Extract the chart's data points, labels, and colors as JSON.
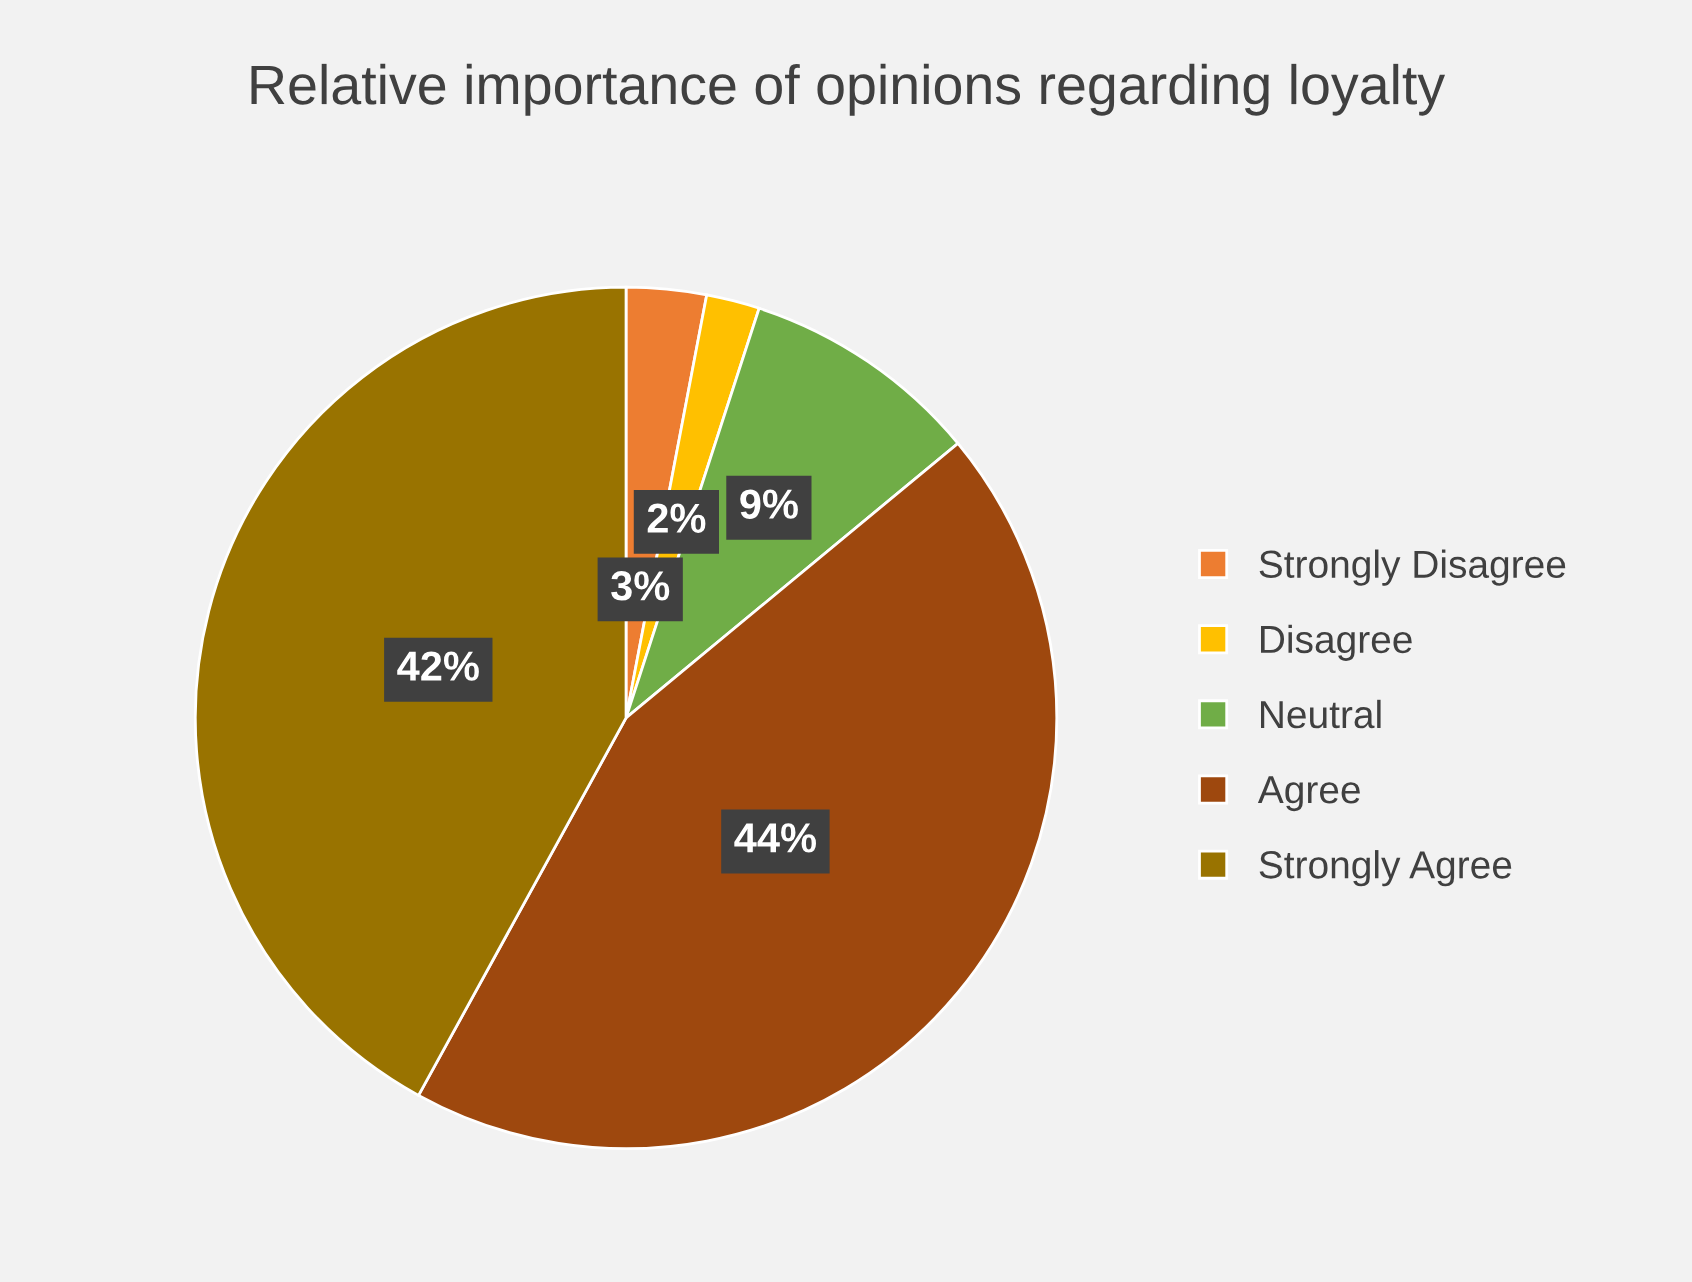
{
  "chart_data": {
    "type": "pie",
    "title": "Relative importance of opinions regarding loyalty",
    "categories": [
      "Strongly Disagree",
      "Disagree",
      "Neutral",
      "Agree",
      "Strongly Agree"
    ],
    "values": [
      3,
      2,
      9,
      44,
      42
    ],
    "colors": [
      "#ed7d31",
      "#ffc000",
      "#70ad47",
      "#9e480e",
      "#997300"
    ],
    "value_labels": [
      "3%",
      "2%",
      "9%",
      "44%",
      "42%"
    ],
    "legend": "right"
  }
}
